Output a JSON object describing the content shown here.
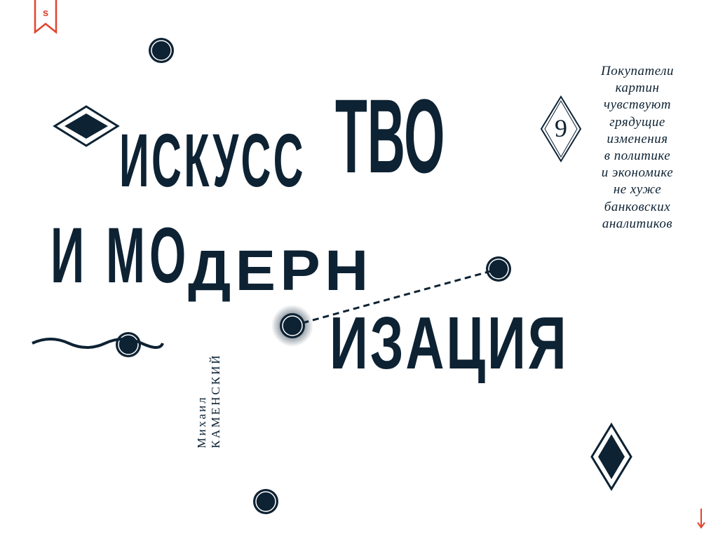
{
  "logo": {
    "letter": "s"
  },
  "title": {
    "line1a": "ИСКУСС",
    "line1b": "ТВО",
    "line2a": "И МО",
    "line2b": "ДЕРН",
    "line3": "ИЗАЦИЯ"
  },
  "author": {
    "first_name": "Михаил",
    "last_name": "КАМЕНСКИЙ"
  },
  "issue": {
    "number": "9"
  },
  "quote": {
    "lines": [
      "Покупатели",
      "картин",
      "чувствуют",
      "грядущие",
      "изменения",
      "в политике",
      "и экономике",
      "не хуже",
      "банковских",
      "аналитиков"
    ]
  },
  "colors": {
    "ink": "#0d2233",
    "accent": "#e2432e"
  },
  "icons": [
    "bookmark-logo-icon",
    "diamond-icon",
    "dot-icon",
    "wave-icon",
    "arrow-down-icon"
  ]
}
